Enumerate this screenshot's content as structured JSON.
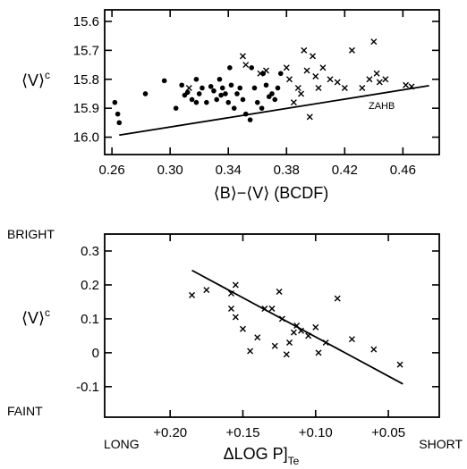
{
  "chart_data": [
    {
      "type": "scatter",
      "title": "",
      "xlabel": "⟨B⟩−⟨V⟩ (BCDF)",
      "ylabel": "⟨V⟩",
      "ylabel_superscript": "c",
      "xlim": [
        0.255,
        0.485
      ],
      "ylim": [
        16.06,
        15.56
      ],
      "y_inverted": true,
      "xticks": [
        0.26,
        0.3,
        0.34,
        0.38,
        0.42,
        0.46
      ],
      "xtick_labels": [
        "0.26",
        "0.30",
        "0.34",
        "0.38",
        "0.42",
        "0.46"
      ],
      "yticks": [
        15.6,
        15.7,
        15.8,
        15.9,
        16.0
      ],
      "ytick_labels": [
        "15.6",
        "15.7",
        "15.8",
        "15.9",
        "16.0"
      ],
      "grid": false,
      "annotations": [
        {
          "text": "ZAHB",
          "x": 0.445,
          "y": 15.872
        }
      ],
      "lines": [
        {
          "name": "ZAHB",
          "x": [
            0.265,
            0.478
          ],
          "y": [
            15.993,
            15.822
          ]
        }
      ],
      "series": [
        {
          "marker": "dot",
          "points": [
            [
              0.262,
              15.88
            ],
            [
              0.264,
              15.92
            ],
            [
              0.265,
              15.95
            ],
            [
              0.283,
              15.85
            ],
            [
              0.296,
              15.805
            ],
            [
              0.304,
              15.9
            ],
            [
              0.308,
              15.82
            ],
            [
              0.31,
              15.855
            ],
            [
              0.312,
              15.845
            ],
            [
              0.315,
              15.87
            ],
            [
              0.318,
              15.8
            ],
            [
              0.32,
              15.85
            ],
            [
              0.322,
              15.83
            ],
            [
              0.325,
              15.88
            ],
            [
              0.328,
              15.825
            ],
            [
              0.33,
              15.84
            ],
            [
              0.332,
              15.87
            ],
            [
              0.334,
              15.8
            ],
            [
              0.336,
              15.83
            ],
            [
              0.338,
              15.85
            ],
            [
              0.34,
              15.88
            ],
            [
              0.341,
              15.76
            ],
            [
              0.342,
              15.82
            ],
            [
              0.344,
              15.9
            ],
            [
              0.346,
              15.85
            ],
            [
              0.348,
              15.83
            ],
            [
              0.35,
              15.87
            ],
            [
              0.352,
              15.92
            ],
            [
              0.355,
              15.94
            ],
            [
              0.356,
              15.76
            ],
            [
              0.358,
              15.83
            ],
            [
              0.36,
              15.88
            ],
            [
              0.363,
              15.9
            ],
            [
              0.364,
              15.78
            ],
            [
              0.366,
              15.82
            ],
            [
              0.368,
              15.86
            ],
            [
              0.37,
              15.85
            ],
            [
              0.372,
              15.87
            ],
            [
              0.374,
              15.83
            ],
            [
              0.376,
              15.78
            ],
            [
              0.318,
              15.88
            ],
            [
              0.335,
              15.855
            ]
          ]
        },
        {
          "marker": "cross",
          "points": [
            [
              0.313,
              15.83
            ],
            [
              0.35,
              15.72
            ],
            [
              0.352,
              15.75
            ],
            [
              0.362,
              15.78
            ],
            [
              0.366,
              15.77
            ],
            [
              0.38,
              15.76
            ],
            [
              0.382,
              15.8
            ],
            [
              0.385,
              15.88
            ],
            [
              0.388,
              15.83
            ],
            [
              0.39,
              15.85
            ],
            [
              0.392,
              15.7
            ],
            [
              0.394,
              15.77
            ],
            [
              0.396,
              15.93
            ],
            [
              0.398,
              15.72
            ],
            [
              0.4,
              15.79
            ],
            [
              0.402,
              15.83
            ],
            [
              0.405,
              15.76
            ],
            [
              0.41,
              15.8
            ],
            [
              0.415,
              15.81
            ],
            [
              0.42,
              15.83
            ],
            [
              0.425,
              15.7
            ],
            [
              0.432,
              15.83
            ],
            [
              0.437,
              15.8
            ],
            [
              0.44,
              15.67
            ],
            [
              0.442,
              15.78
            ],
            [
              0.444,
              15.81
            ],
            [
              0.448,
              15.8
            ],
            [
              0.462,
              15.82
            ],
            [
              0.466,
              15.825
            ]
          ]
        }
      ]
    },
    {
      "type": "scatter",
      "title": "",
      "xlabel": "ΔLOG P]",
      "xlabel_subscript": "Te",
      "ylabel": "⟨V⟩",
      "ylabel_superscript": "c",
      "xlim": [
        0.245,
        0.015
      ],
      "ylim": [
        -0.19,
        0.35
      ],
      "x_inverted": true,
      "xticks": [
        0.2,
        0.15,
        0.1,
        0.05
      ],
      "xtick_labels": [
        "+0.20",
        "+0.15",
        "+0.10",
        "+0.05"
      ],
      "yticks": [
        0.3,
        0.2,
        0.1,
        0,
        -0.1
      ],
      "ytick_labels": [
        "0.3",
        "0.2",
        "0.1",
        "0",
        "-0.1"
      ],
      "grid": false,
      "side_labels": {
        "top": "BRIGHT",
        "bottom": "FAINT",
        "left": "LONG",
        "right": "SHORT"
      },
      "lines": [
        {
          "x": [
            0.185,
            0.04
          ],
          "y": [
            0.243,
            -0.092
          ]
        }
      ],
      "series": [
        {
          "marker": "cross",
          "points": [
            [
              0.185,
              0.17
            ],
            [
              0.175,
              0.185
            ],
            [
              0.158,
              0.175
            ],
            [
              0.155,
              0.2
            ],
            [
              0.158,
              0.13
            ],
            [
              0.155,
              0.105
            ],
            [
              0.15,
              0.07
            ],
            [
              0.145,
              0.005
            ],
            [
              0.135,
              0.13
            ],
            [
              0.13,
              0.13
            ],
            [
              0.125,
              0.18
            ],
            [
              0.128,
              0.02
            ],
            [
              0.123,
              0.1
            ],
            [
              0.118,
              0.03
            ],
            [
              0.115,
              0.06
            ],
            [
              0.113,
              0.08
            ],
            [
              0.11,
              0.065
            ],
            [
              0.105,
              0.05
            ],
            [
              0.1,
              0.075
            ],
            [
              0.098,
              0.0
            ],
            [
              0.093,
              0.03
            ],
            [
              0.085,
              0.16
            ],
            [
              0.075,
              0.04
            ],
            [
              0.06,
              0.01
            ],
            [
              0.042,
              -0.035
            ],
            [
              0.14,
              0.045
            ],
            [
              0.12,
              -0.005
            ]
          ]
        }
      ]
    }
  ]
}
